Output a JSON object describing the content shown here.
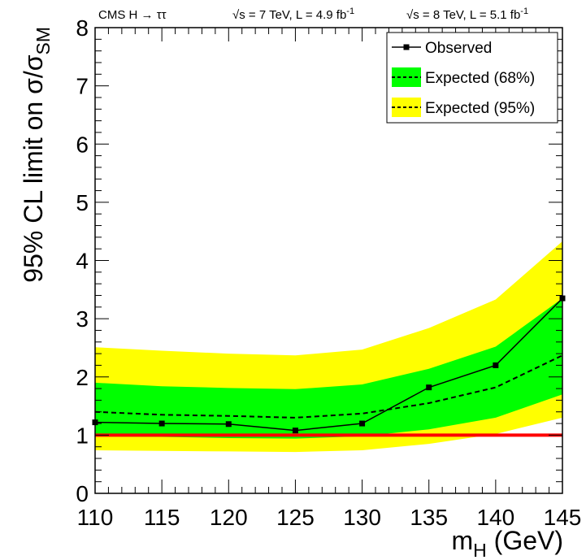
{
  "chart_data": {
    "type": "line",
    "header": {
      "experiment": "CMS H",
      "arrow": "→",
      "channel": "ττ",
      "run1_root": "√s",
      "run1_rest": " = 7 TeV, L = 4.9 fb",
      "run1_sup": "-1",
      "run2_root": "√s",
      "run2_rest": " = 8 TeV, L = 5.1 fb",
      "run2_sup": "-1"
    },
    "xlabel": {
      "main": "m",
      "sub": "H",
      "unit": " (GeV)"
    },
    "ylabel": {
      "main": "95% CL limit on σ/σ",
      "sub": "SM"
    },
    "xlim": [
      110,
      145
    ],
    "ylim": [
      0,
      8
    ],
    "x_ticks": [
      "110",
      "115",
      "120",
      "125",
      "130",
      "135",
      "140",
      "145"
    ],
    "y_ticks": [
      "0",
      "1",
      "2",
      "3",
      "4",
      "5",
      "6",
      "7",
      "8"
    ],
    "x": [
      110,
      115,
      120,
      125,
      130,
      135,
      140,
      145
    ],
    "series": [
      {
        "name": "Observed",
        "values": [
          1.22,
          1.2,
          1.19,
          1.08,
          1.2,
          1.82,
          2.2,
          3.35
        ]
      },
      {
        "name": "Expected (68%)",
        "values": [
          1.4,
          1.35,
          1.33,
          1.3,
          1.37,
          1.55,
          1.82,
          2.37
        ]
      }
    ],
    "band_68": {
      "low": [
        0.98,
        0.97,
        0.95,
        0.94,
        0.98,
        1.1,
        1.3,
        1.7
      ],
      "high": [
        1.9,
        1.84,
        1.81,
        1.79,
        1.87,
        2.14,
        2.52,
        3.35
      ]
    },
    "band_95": {
      "low": [
        0.74,
        0.73,
        0.72,
        0.71,
        0.74,
        0.85,
        1.02,
        1.3
      ],
      "high": [
        2.51,
        2.45,
        2.4,
        2.37,
        2.47,
        2.84,
        3.33,
        4.33
      ]
    },
    "reference_line": 1,
    "legend": {
      "position": "top-right",
      "entries": [
        "Observed",
        "Expected (68%)",
        "Expected (95%)"
      ]
    },
    "colors": {
      "band_68": "#00ff00",
      "band_95": "#ffff00",
      "reference": "#ff0000",
      "observed": "#000000",
      "expected": "#000000"
    }
  }
}
